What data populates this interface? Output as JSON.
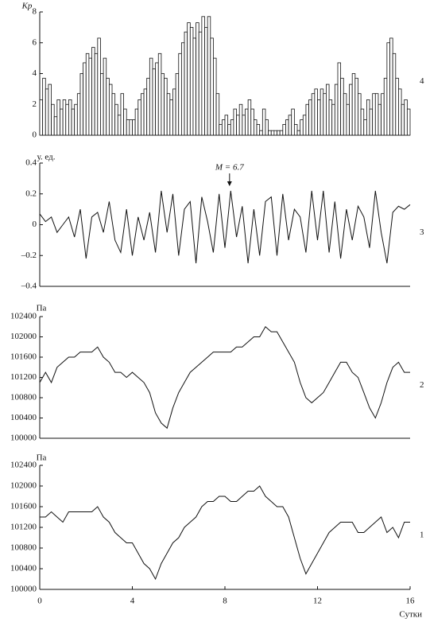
{
  "chart_data": [
    {
      "type": "bar",
      "y_label": "Kp",
      "panel_label": "4",
      "xlim": [
        0,
        16
      ],
      "ylim": [
        0,
        8
      ],
      "yticks": [
        0,
        2,
        4,
        6,
        8
      ],
      "color": "#ffffff",
      "categories": [
        null,
        null,
        null,
        null,
        null,
        null,
        null,
        null,
        null,
        null,
        null,
        null,
        null,
        null,
        null,
        null,
        null,
        null,
        null,
        null,
        null,
        null,
        null,
        null,
        null,
        null,
        null,
        null,
        null,
        null,
        null,
        null,
        null,
        null,
        null,
        null,
        null,
        null,
        null,
        null,
        null,
        null,
        null,
        null,
        null,
        null,
        null,
        null,
        null,
        null,
        null,
        null,
        null,
        null,
        null,
        null,
        null,
        null,
        null,
        null,
        null,
        null,
        null,
        null,
        null,
        null,
        null,
        null,
        null,
        null,
        null,
        null,
        null,
        null,
        null,
        null,
        null,
        null,
        null,
        null,
        null,
        null,
        null,
        null,
        null,
        null,
        null,
        null,
        null,
        null,
        null,
        null,
        null,
        null,
        null,
        null,
        null,
        null,
        null,
        null,
        null,
        null,
        null,
        null,
        null,
        null,
        null,
        null,
        null,
        null,
        null,
        null,
        null,
        null,
        null,
        null,
        null,
        null,
        null,
        null,
        null,
        null,
        null,
        null,
        null,
        null,
        null,
        null
      ],
      "values": [
        2.3,
        3.7,
        3.0,
        3.3,
        2.0,
        1.2,
        2.3,
        1.7,
        2.3,
        2.0,
        2.3,
        1.7,
        2.0,
        2.7,
        4.0,
        4.7,
        5.3,
        5.0,
        5.7,
        5.3,
        6.3,
        4.0,
        5.0,
        3.7,
        3.3,
        2.7,
        2.0,
        1.3,
        2.7,
        1.7,
        1.0,
        1.0,
        1.0,
        1.7,
        2.3,
        2.7,
        3.0,
        3.7,
        5.0,
        4.3,
        4.7,
        5.3,
        4.0,
        3.7,
        2.7,
        2.3,
        3.0,
        4.0,
        5.3,
        6.0,
        6.7,
        7.3,
        7.0,
        6.3,
        7.3,
        6.7,
        7.7,
        7.0,
        7.7,
        6.3,
        5.0,
        2.7,
        0.7,
        1.0,
        1.3,
        0.7,
        1.0,
        1.7,
        1.3,
        2.0,
        1.3,
        1.7,
        2.3,
        1.7,
        1.0,
        0.7,
        0.3,
        1.7,
        1.0,
        0.3,
        0.3,
        0.3,
        0.3,
        0.3,
        0.7,
        1.0,
        1.3,
        1.7,
        0.7,
        0.3,
        1.0,
        1.3,
        2.0,
        2.3,
        2.7,
        3.0,
        2.3,
        3.0,
        2.7,
        3.3,
        2.3,
        2.0,
        3.3,
        4.7,
        3.7,
        2.7,
        2.0,
        3.3,
        4.0,
        3.7,
        2.7,
        1.7,
        1.0,
        2.3,
        1.7,
        2.7,
        2.7,
        2.0,
        2.7,
        3.7,
        6.0,
        6.3,
        5.3,
        3.7,
        3.0,
        2.0,
        2.3,
        1.7
      ]
    },
    {
      "type": "line",
      "y_label": "у. ед.",
      "panel_label": "3",
      "xlim": [
        0,
        16
      ],
      "ylim": [
        -0.4,
        0.4
      ],
      "yticks": [
        {
          "value": -0.4,
          "label": "–0.4"
        },
        {
          "value": -0.2,
          "label": "–0.2"
        },
        0,
        0.2,
        0.4
      ],
      "annotations": [
        {
          "text": "M = 6.7",
          "x": 8.2
        }
      ],
      "series": [
        {
          "color": "#111111",
          "x": [
            0,
            0.25,
            0.5,
            0.75,
            1,
            1.25,
            1.5,
            1.75,
            2,
            2.25,
            2.5,
            2.75,
            3,
            3.25,
            3.5,
            3.75,
            4,
            4.25,
            4.5,
            4.75,
            5,
            5.25,
            5.5,
            5.75,
            6,
            6.25,
            6.5,
            6.75,
            7,
            7.25,
            7.5,
            7.75,
            8,
            8.25,
            8.5,
            8.75,
            9,
            9.25,
            9.5,
            9.75,
            10,
            10.25,
            10.5,
            10.75,
            11,
            11.25,
            11.5,
            11.75,
            12,
            12.25,
            12.5,
            12.75,
            13,
            13.25,
            13.5,
            13.75,
            14,
            14.25,
            14.5,
            14.75,
            15,
            15.25,
            15.5,
            15.75,
            16
          ],
          "values": [
            0.07,
            0.02,
            0.05,
            -0.05,
            0.0,
            0.05,
            -0.08,
            0.1,
            -0.22,
            0.05,
            0.08,
            -0.05,
            0.15,
            -0.1,
            -0.18,
            0.1,
            -0.2,
            0.05,
            -0.1,
            0.08,
            -0.18,
            0.22,
            -0.05,
            0.2,
            -0.2,
            0.1,
            0.15,
            -0.25,
            0.18,
            0.02,
            -0.18,
            0.2,
            -0.15,
            0.22,
            -0.08,
            0.12,
            -0.25,
            0.1,
            -0.2,
            0.15,
            0.18,
            -0.2,
            0.2,
            -0.1,
            0.1,
            0.05,
            -0.18,
            0.22,
            -0.1,
            0.22,
            -0.18,
            0.15,
            -0.22,
            0.1,
            -0.1,
            0.12,
            0.05,
            -0.15,
            0.22,
            -0.05,
            -0.25,
            0.08,
            0.12,
            0.1,
            0.13
          ]
        }
      ]
    },
    {
      "type": "line",
      "y_label": "Па",
      "panel_label": "2",
      "xlim": [
        0,
        16
      ],
      "ylim": [
        100000,
        102400
      ],
      "yticks": [
        100000,
        100400,
        100800,
        101200,
        101600,
        102000,
        102400
      ],
      "series": [
        {
          "color": "#111111",
          "x": [
            0,
            0.25,
            0.5,
            0.75,
            1,
            1.25,
            1.5,
            1.75,
            2,
            2.25,
            2.5,
            2.75,
            3,
            3.25,
            3.5,
            3.75,
            4,
            4.25,
            4.5,
            4.75,
            5,
            5.25,
            5.5,
            5.75,
            6,
            6.25,
            6.5,
            6.75,
            7,
            7.25,
            7.5,
            7.75,
            8,
            8.25,
            8.5,
            8.75,
            9,
            9.25,
            9.5,
            9.75,
            10,
            10.25,
            10.5,
            10.75,
            11,
            11.25,
            11.5,
            11.75,
            12,
            12.25,
            12.5,
            12.75,
            13,
            13.25,
            13.5,
            13.75,
            14,
            14.25,
            14.5,
            14.75,
            15,
            15.25,
            15.5,
            15.75,
            16
          ],
          "values": [
            101100,
            101300,
            101100,
            101400,
            101500,
            101600,
            101600,
            101700,
            101700,
            101700,
            101800,
            101600,
            101500,
            101300,
            101300,
            101200,
            101300,
            101200,
            101100,
            100900,
            100500,
            100300,
            100200,
            100600,
            100900,
            101100,
            101300,
            101400,
            101500,
            101600,
            101700,
            101700,
            101700,
            101700,
            101800,
            101800,
            101900,
            102000,
            102000,
            102200,
            102100,
            102100,
            101900,
            101700,
            101500,
            101100,
            100800,
            100700,
            100800,
            100900,
            101100,
            101300,
            101500,
            101500,
            101300,
            101200,
            100900,
            100600,
            100400,
            100700,
            101100,
            101400,
            101500,
            101300,
            101300
          ]
        }
      ]
    },
    {
      "type": "line",
      "y_label": "Па",
      "panel_label": "1",
      "x_label": "Сутки",
      "xlim": [
        0,
        16
      ],
      "xticks": [
        0,
        4,
        8,
        12,
        16
      ],
      "ylim": [
        100000,
        102400
      ],
      "yticks": [
        100000,
        100400,
        100800,
        101200,
        101600,
        102000,
        102400
      ],
      "series": [
        {
          "color": "#111111",
          "x": [
            0,
            0.25,
            0.5,
            0.75,
            1,
            1.25,
            1.5,
            1.75,
            2,
            2.25,
            2.5,
            2.75,
            3,
            3.25,
            3.5,
            3.75,
            4,
            4.25,
            4.5,
            4.75,
            5,
            5.25,
            5.5,
            5.75,
            6,
            6.25,
            6.5,
            6.75,
            7,
            7.25,
            7.5,
            7.75,
            8,
            8.25,
            8.5,
            8.75,
            9,
            9.25,
            9.5,
            9.75,
            10,
            10.25,
            10.5,
            10.75,
            11,
            11.25,
            11.5,
            11.75,
            12,
            12.25,
            12.5,
            12.75,
            13,
            13.25,
            13.5,
            13.75,
            14,
            14.25,
            14.5,
            14.75,
            15,
            15.25,
            15.5,
            15.75,
            16
          ],
          "values": [
            101400,
            101400,
            101500,
            101400,
            101300,
            101500,
            101500,
            101500,
            101500,
            101500,
            101600,
            101400,
            101300,
            101100,
            101000,
            100900,
            100900,
            100700,
            100500,
            100400,
            100200,
            100500,
            100700,
            100900,
            101000,
            101200,
            101300,
            101400,
            101600,
            101700,
            101700,
            101800,
            101800,
            101700,
            101700,
            101800,
            101900,
            101900,
            102000,
            101800,
            101700,
            101600,
            101600,
            101400,
            101000,
            100600,
            100300,
            100500,
            100700,
            100900,
            101100,
            101200,
            101300,
            101300,
            101300,
            101100,
            101100,
            101200,
            101300,
            101400,
            101100,
            101200,
            101000,
            101300,
            101300
          ]
        }
      ]
    }
  ]
}
